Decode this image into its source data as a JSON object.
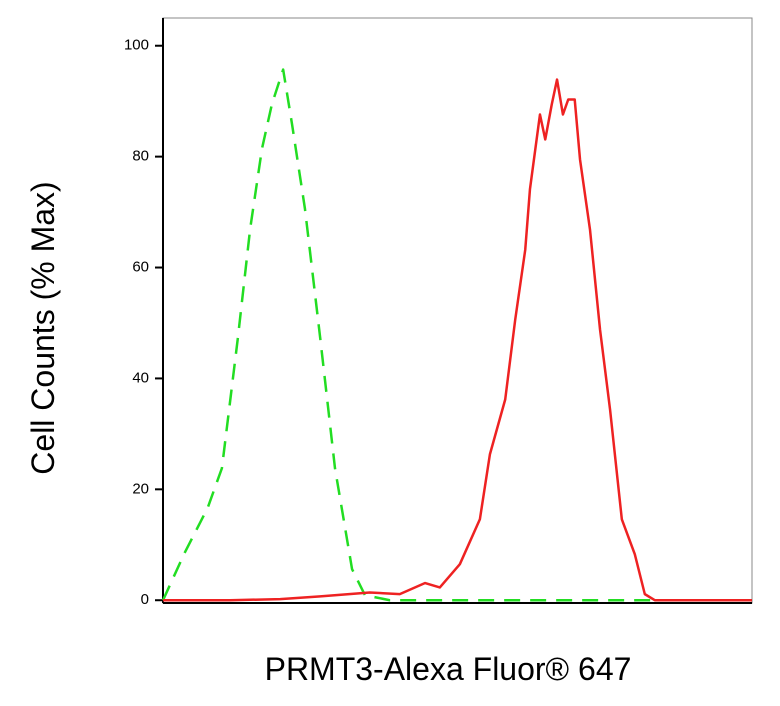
{
  "chart_data": {
    "type": "line",
    "x_label": "PRMT3-Alexa Fluor® 647",
    "y_label": "Cell Counts (% Max)",
    "xlim": [
      0,
      100
    ],
    "ylim": [
      -0.5,
      105
    ],
    "yticks": [
      0,
      20,
      40,
      60,
      80,
      100
    ],
    "series": [
      {
        "color": "#22dd22",
        "dash": true,
        "x": [
          0,
          3.7,
          7.6,
          10.0,
          12.7,
          14.8,
          16.8,
          18.5,
          20.4,
          21.9,
          24.1,
          26.7,
          29.2,
          32.1,
          34.3,
          38.5,
          100
        ],
        "values": [
          0,
          8.6,
          16.7,
          23.8,
          47.2,
          67.0,
          81.4,
          89.5,
          95.7,
          85.9,
          70.6,
          47.2,
          23.8,
          5.6,
          0.9,
          0,
          0
        ]
      },
      {
        "color": "#ee2222",
        "dash": false,
        "x": [
          0,
          11.4,
          19.9,
          26.7,
          35.1,
          40.2,
          44.5,
          47.0,
          50.4,
          53.8,
          55.5,
          58.1,
          59.8,
          61.5,
          62.3,
          64.0,
          64.9,
          66.0,
          66.9,
          67.9,
          68.8,
          69.9,
          70.8,
          72.5,
          74.2,
          75.9,
          77.9,
          80.1,
          81.8,
          83.5,
          100
        ],
        "values": [
          0,
          0,
          0.2,
          0.7,
          1.4,
          1.1,
          3.1,
          2.3,
          6.5,
          14.6,
          26.3,
          36.2,
          50.6,
          63.2,
          74.1,
          87.6,
          83.1,
          89.4,
          93.9,
          87.6,
          90.3,
          90.3,
          79.5,
          66.8,
          48.8,
          34.4,
          14.6,
          8.3,
          1.1,
          0,
          0
        ]
      }
    ]
  }
}
